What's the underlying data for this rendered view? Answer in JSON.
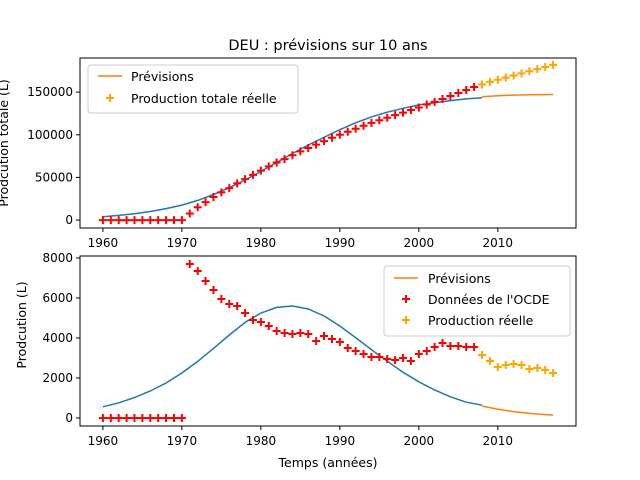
{
  "chart_data": [
    {
      "type": "line",
      "title": "DEU : prévisions sur 10 ans",
      "xlabel": "",
      "ylabel": "Prodcution totale (L)",
      "xlim": [
        1957.1,
        2019.9
      ],
      "ylim": [
        -9300,
        190000
      ],
      "xticks": [
        1960,
        1970,
        1980,
        1990,
        2000,
        2010
      ],
      "yticks": [
        0,
        50000,
        100000,
        150000
      ],
      "ytick_labels": [
        "0",
        "50000",
        "100000",
        "150000"
      ],
      "grid": false,
      "legend_position": "upper-left",
      "legend": [
        "Prévisions",
        "Production totale réelle"
      ],
      "series": [
        {
          "name": "",
          "style": "line",
          "color": "#1f77b4",
          "x": [
            1960,
            1962,
            1964,
            1966,
            1968,
            1970,
            1972,
            1974,
            1976,
            1978,
            1980,
            1982,
            1984,
            1986,
            1988,
            1990,
            1992,
            1994,
            1996,
            1998,
            2000,
            2002,
            2004,
            2006,
            2008
          ],
          "y": [
            4000,
            5500,
            7500,
            10000,
            13500,
            17500,
            23000,
            30000,
            38000,
            47000,
            57000,
            67500,
            78000,
            88000,
            97000,
            106000,
            114000,
            121000,
            126500,
            131000,
            135000,
            137500,
            140000,
            142000,
            143500
          ]
        },
        {
          "name": "Prévisions",
          "style": "line",
          "color": "#ff7f0e",
          "x": [
            2008,
            2010,
            2012,
            2014,
            2016,
            2017
          ],
          "y": [
            144500,
            145800,
            146500,
            146900,
            147100,
            147200
          ]
        },
        {
          "name": "",
          "style": "marker",
          "color": "#ff0000",
          "x": [
            1960,
            1961,
            1962,
            1963,
            1964,
            1965,
            1966,
            1967,
            1968,
            1969,
            1970,
            1971,
            1972,
            1973,
            1974,
            1975,
            1976,
            1977,
            1978,
            1979,
            1980,
            1981,
            1982,
            1983,
            1984,
            1985,
            1986,
            1987,
            1988,
            1989,
            1990,
            1991,
            1992,
            1993,
            1994,
            1995,
            1996,
            1997,
            1998,
            1999,
            2000,
            2001,
            2002,
            2003,
            2004,
            2005,
            2006,
            2007
          ],
          "y": [
            0,
            0,
            0,
            0,
            0,
            0,
            0,
            0,
            0,
            0,
            0,
            7700,
            15000,
            21000,
            27000,
            32500,
            37500,
            43000,
            48000,
            53000,
            58000,
            63000,
            67500,
            71500,
            76000,
            80500,
            84500,
            88500,
            92500,
            96500,
            100000,
            103500,
            107000,
            110500,
            114000,
            117000,
            120000,
            123000,
            126000,
            129000,
            132000,
            135500,
            138500,
            142000,
            145500,
            149000,
            152500,
            156000
          ]
        },
        {
          "name": "Production totale réelle",
          "style": "marker",
          "color": "#ffa500",
          "x": [
            2008,
            2009,
            2010,
            2011,
            2012,
            2013,
            2014,
            2015,
            2016,
            2017
          ],
          "y": [
            159000,
            162000,
            164500,
            167000,
            169500,
            172000,
            174500,
            177000,
            179500,
            182000
          ]
        }
      ]
    },
    {
      "type": "line",
      "title": "",
      "xlabel": "Temps (années)",
      "ylabel": "Prodcution (L)",
      "xlim": [
        1957.1,
        2019.9
      ],
      "ylim": [
        -400,
        8100
      ],
      "xticks": [
        1960,
        1970,
        1980,
        1990,
        2000,
        2010
      ],
      "yticks": [
        0,
        2000,
        4000,
        6000,
        8000
      ],
      "ytick_labels": [
        "0",
        "2000",
        "4000",
        "6000",
        "8000"
      ],
      "grid": false,
      "legend_position": "upper-right",
      "legend": [
        "Prévisions",
        "Données de l'OCDE",
        "Production réelle"
      ],
      "series": [
        {
          "name": "",
          "style": "line",
          "color": "#1f77b4",
          "x": [
            1960,
            1962,
            1964,
            1966,
            1968,
            1970,
            1972,
            1974,
            1976,
            1978,
            1980,
            1982,
            1984,
            1986,
            1988,
            1990,
            1992,
            1994,
            1996,
            1998,
            2000,
            2002,
            2004,
            2006,
            2008
          ],
          "y": [
            560,
            760,
            1020,
            1350,
            1750,
            2250,
            2830,
            3480,
            4150,
            4780,
            5250,
            5530,
            5600,
            5450,
            5100,
            4600,
            4020,
            3420,
            2840,
            2290,
            1810,
            1400,
            1060,
            790,
            640
          ]
        },
        {
          "name": "Prévisions",
          "style": "line",
          "color": "#ff7f0e",
          "x": [
            2008,
            2010,
            2012,
            2014,
            2016,
            2017
          ],
          "y": [
            600,
            440,
            320,
            230,
            170,
            150
          ]
        },
        {
          "name": "",
          "style": "marker",
          "color": "#ff0000",
          "x": [
            1960,
            1961,
            1962,
            1963,
            1964,
            1965,
            1966,
            1967,
            1968,
            1969,
            1970
          ],
          "y": [
            0,
            0,
            0,
            0,
            0,
            0,
            0,
            0,
            0,
            0,
            0
          ]
        },
        {
          "name": "Données de l'OCDE",
          "style": "marker",
          "color": "#ff0000",
          "x": [
            1971,
            1972,
            1973,
            1974,
            1975,
            1976,
            1977,
            1978,
            1979,
            1980,
            1981,
            1982,
            1983,
            1984,
            1985,
            1986,
            1987,
            1988,
            1989,
            1990,
            1991,
            1992,
            1993,
            1994,
            1995,
            1996,
            1997,
            1998,
            1999,
            2000,
            2001,
            2002,
            2003,
            2004,
            2005,
            2006,
            2007
          ],
          "y": [
            7700,
            7350,
            6850,
            6400,
            5950,
            5700,
            5600,
            5250,
            4900,
            4800,
            4600,
            4350,
            4250,
            4200,
            4250,
            4200,
            3850,
            4100,
            3950,
            3800,
            3500,
            3350,
            3200,
            3050,
            3050,
            2950,
            2900,
            3000,
            2850,
            3200,
            3350,
            3550,
            3750,
            3600,
            3600,
            3550,
            3550
          ]
        },
        {
          "name": "Production réelle",
          "style": "marker",
          "color": "#ffa500",
          "x": [
            2008,
            2009,
            2010,
            2011,
            2012,
            2013,
            2014,
            2015,
            2016,
            2017
          ],
          "y": [
            3150,
            2850,
            2550,
            2650,
            2700,
            2650,
            2450,
            2500,
            2400,
            2250
          ]
        }
      ]
    }
  ]
}
